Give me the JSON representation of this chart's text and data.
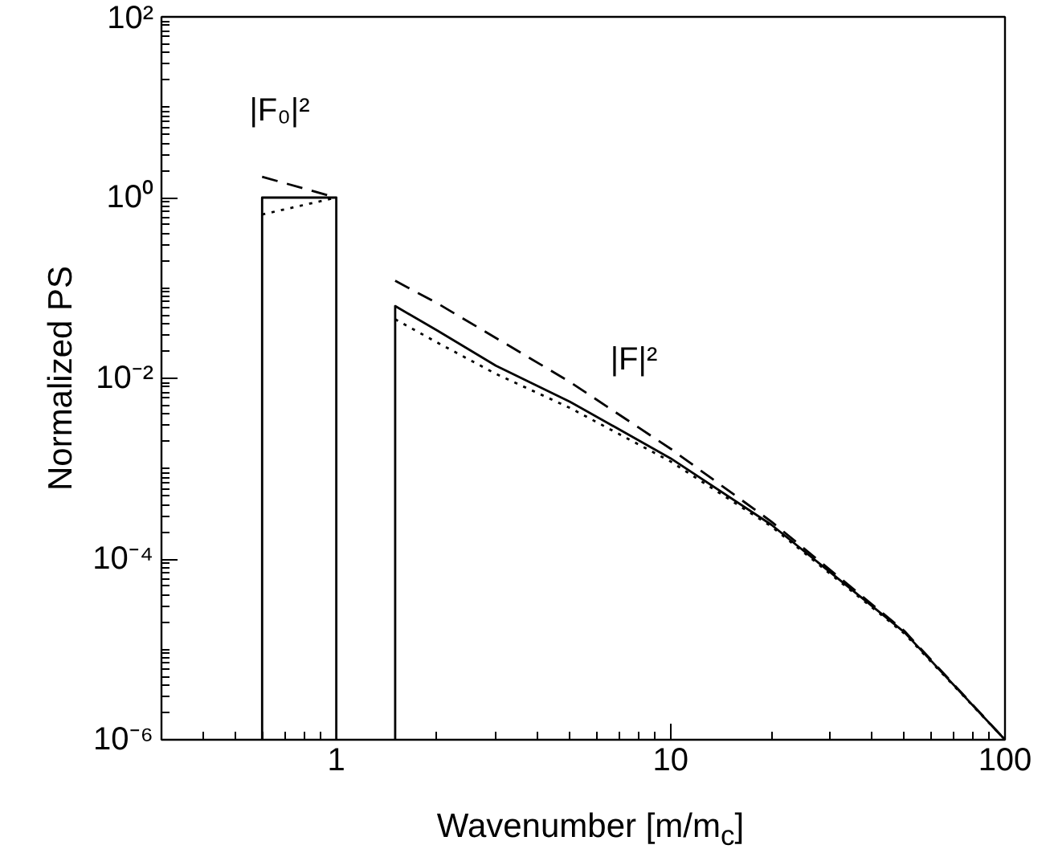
{
  "chart_data": {
    "type": "line",
    "xlabel": "Wavenumber [m/m$_{c}$]",
    "ylabel": "Normalized PS",
    "log": "xy",
    "xlim": [
      0.3,
      100
    ],
    "ylim": [
      1e-06,
      100
    ],
    "xticks": [
      1,
      10,
      100
    ],
    "yticks": [
      {
        "value": 1e-06,
        "label": "10⁻⁶"
      },
      {
        "value": 0.0001,
        "label": "10⁻⁴"
      },
      {
        "value": 0.01,
        "label": "10⁻²"
      },
      {
        "value": 1,
        "label": "10⁰"
      },
      {
        "value": 100,
        "label": "10²"
      }
    ],
    "grid": false,
    "series": [
      {
        "color": "#000000",
        "line_style": "solid",
        "x": [
          0.6,
          0.6,
          1,
          1
        ],
        "values": [
          1e-06,
          1,
          1,
          1e-06
        ]
      },
      {
        "color": "#000000",
        "line_style": "dashed",
        "x": [
          0.6,
          1
        ],
        "values": [
          1.7,
          1
        ]
      },
      {
        "color": "#000000",
        "line_style": "dotted",
        "x": [
          0.6,
          1
        ],
        "values": [
          0.65,
          1
        ]
      },
      {
        "color": "#000000",
        "line_style": "solid",
        "x": [
          1.5,
          1.5,
          2,
          3,
          5,
          10,
          20,
          50,
          100
        ],
        "values": [
          1e-06,
          0.063,
          0.034,
          0.0138,
          0.0055,
          0.0013,
          0.00024,
          1.55e-05,
          1e-06
        ]
      },
      {
        "color": "#000000",
        "line_style": "dashed",
        "x": [
          1.5,
          2,
          3,
          5,
          10,
          20,
          50,
          100
        ],
        "values": [
          0.12,
          0.068,
          0.028,
          0.0091,
          0.00166,
          0.00026,
          1.6e-05,
          1e-06
        ]
      },
      {
        "color": "#000000",
        "line_style": "dotted",
        "x": [
          1.5,
          2,
          3,
          5,
          10,
          20,
          50,
          100
        ],
        "values": [
          0.045,
          0.025,
          0.0112,
          0.0047,
          0.0012,
          0.00023,
          1.5e-05,
          1e-06
        ]
      }
    ],
    "annotations": [
      "|F₀|²",
      "|F|²"
    ]
  }
}
